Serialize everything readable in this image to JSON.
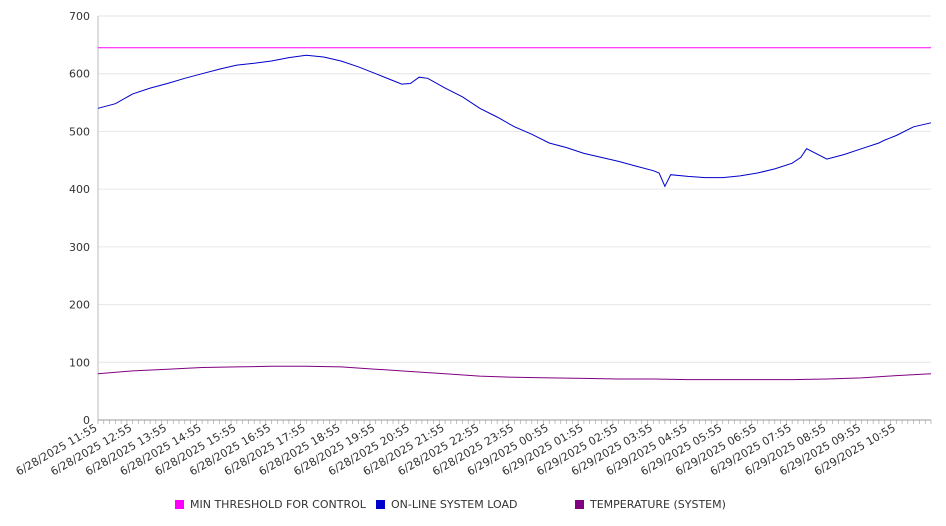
{
  "chart_data": {
    "type": "line",
    "title": "",
    "xlabel": "",
    "ylabel": "",
    "ylim": [
      0,
      700
    ],
    "y_ticks": [
      0,
      100,
      200,
      300,
      400,
      500,
      600,
      700
    ],
    "grid": "horizontal",
    "legend_position": "bottom",
    "x_tick_labels": [
      "6/28/2025 11:55",
      "6/28/2025 12:55",
      "6/28/2025 13:55",
      "6/28/2025 14:55",
      "6/28/2025 15:55",
      "6/28/2025 16:55",
      "6/28/2025 17:55",
      "6/28/2025 18:55",
      "6/28/2025 19:55",
      "6/28/2025 20:55",
      "6/28/2025 21:55",
      "6/28/2025 22:55",
      "6/28/2025 23:55",
      "6/29/2025 00:55",
      "6/29/2025 01:55",
      "6/29/2025 02:55",
      "6/29/2025 03:55",
      "6/29/2025 04:55",
      "6/29/2025 05:55",
      "6/29/2025 06:55",
      "6/29/2025 07:55",
      "6/29/2025 08:55",
      "6/29/2025 09:55",
      "6/29/2025 10:55"
    ],
    "x_start": "6/28/2025 11:55",
    "x_end": "6/29/2025 11:55",
    "series": [
      {
        "name": "MIN THRESHOLD FOR CONTROL",
        "color": "#ff00ff",
        "x": [
          "6/28/2025 11:55",
          "6/29/2025 11:55"
        ],
        "values": [
          645,
          645
        ]
      },
      {
        "name": "ON-LINE SYSTEM LOAD",
        "color": "#0000cc",
        "x": [
          "6/28/2025 11:55",
          "6/28/2025 12:25",
          "6/28/2025 12:55",
          "6/28/2025 13:25",
          "6/28/2025 13:55",
          "6/28/2025 14:25",
          "6/28/2025 14:55",
          "6/28/2025 15:25",
          "6/28/2025 15:55",
          "6/28/2025 16:25",
          "6/28/2025 16:55",
          "6/28/2025 17:25",
          "6/28/2025 17:55",
          "6/28/2025 18:25",
          "6/28/2025 18:55",
          "6/28/2025 19:25",
          "6/28/2025 19:55",
          "6/28/2025 20:25",
          "6/28/2025 20:40",
          "6/28/2025 20:55",
          "6/28/2025 21:10",
          "6/28/2025 21:25",
          "6/28/2025 21:55",
          "6/28/2025 22:25",
          "6/28/2025 22:55",
          "6/28/2025 23:25",
          "6/28/2025 23:55",
          "6/29/2025 00:25",
          "6/29/2025 00:55",
          "6/29/2025 01:25",
          "6/29/2025 01:55",
          "6/29/2025 02:25",
          "6/29/2025 02:55",
          "6/29/2025 03:25",
          "6/29/2025 03:55",
          "6/29/2025 04:05",
          "6/29/2025 04:15",
          "6/29/2025 04:25",
          "6/29/2025 04:55",
          "6/29/2025 05:25",
          "6/29/2025 05:55",
          "6/29/2025 06:25",
          "6/29/2025 06:55",
          "6/29/2025 07:25",
          "6/29/2025 07:55",
          "6/29/2025 08:10",
          "6/29/2025 08:20",
          "6/29/2025 08:55",
          "6/29/2025 09:25",
          "6/29/2025 09:55",
          "6/29/2025 10:25",
          "6/29/2025 10:35",
          "6/29/2025 10:55",
          "6/29/2025 11:25",
          "6/29/2025 11:55"
        ],
        "values": [
          540,
          548,
          565,
          575,
          583,
          592,
          600,
          608,
          615,
          618,
          622,
          628,
          632,
          629,
          622,
          612,
          600,
          588,
          582,
          583,
          594,
          592,
          575,
          560,
          540,
          525,
          508,
          495,
          480,
          472,
          462,
          455,
          448,
          440,
          432,
          428,
          405,
          425,
          422,
          420,
          420,
          423,
          428,
          435,
          445,
          455,
          470,
          452,
          460,
          470,
          480,
          485,
          493,
          508,
          515
        ]
      },
      {
        "name": "TEMPERATURE (SYSTEM)",
        "color": "#800080",
        "x": [
          "6/28/2025 11:55",
          "6/28/2025 12:55",
          "6/28/2025 13:55",
          "6/28/2025 14:55",
          "6/28/2025 15:55",
          "6/28/2025 16:55",
          "6/28/2025 17:55",
          "6/28/2025 18:55",
          "6/28/2025 19:55",
          "6/28/2025 20:55",
          "6/28/2025 21:55",
          "6/28/2025 22:55",
          "6/28/2025 23:55",
          "6/29/2025 00:55",
          "6/29/2025 01:55",
          "6/29/2025 02:55",
          "6/29/2025 03:55",
          "6/29/2025 04:55",
          "6/29/2025 05:55",
          "6/29/2025 06:55",
          "6/29/2025 07:55",
          "6/29/2025 08:55",
          "6/29/2025 09:55",
          "6/29/2025 10:55",
          "6/29/2025 11:55"
        ],
        "values": [
          80,
          85,
          88,
          91,
          92,
          93,
          93,
          92,
          88,
          84,
          80,
          76,
          74,
          73,
          72,
          71,
          71,
          70,
          70,
          70,
          70,
          71,
          73,
          77,
          80
        ]
      }
    ]
  }
}
